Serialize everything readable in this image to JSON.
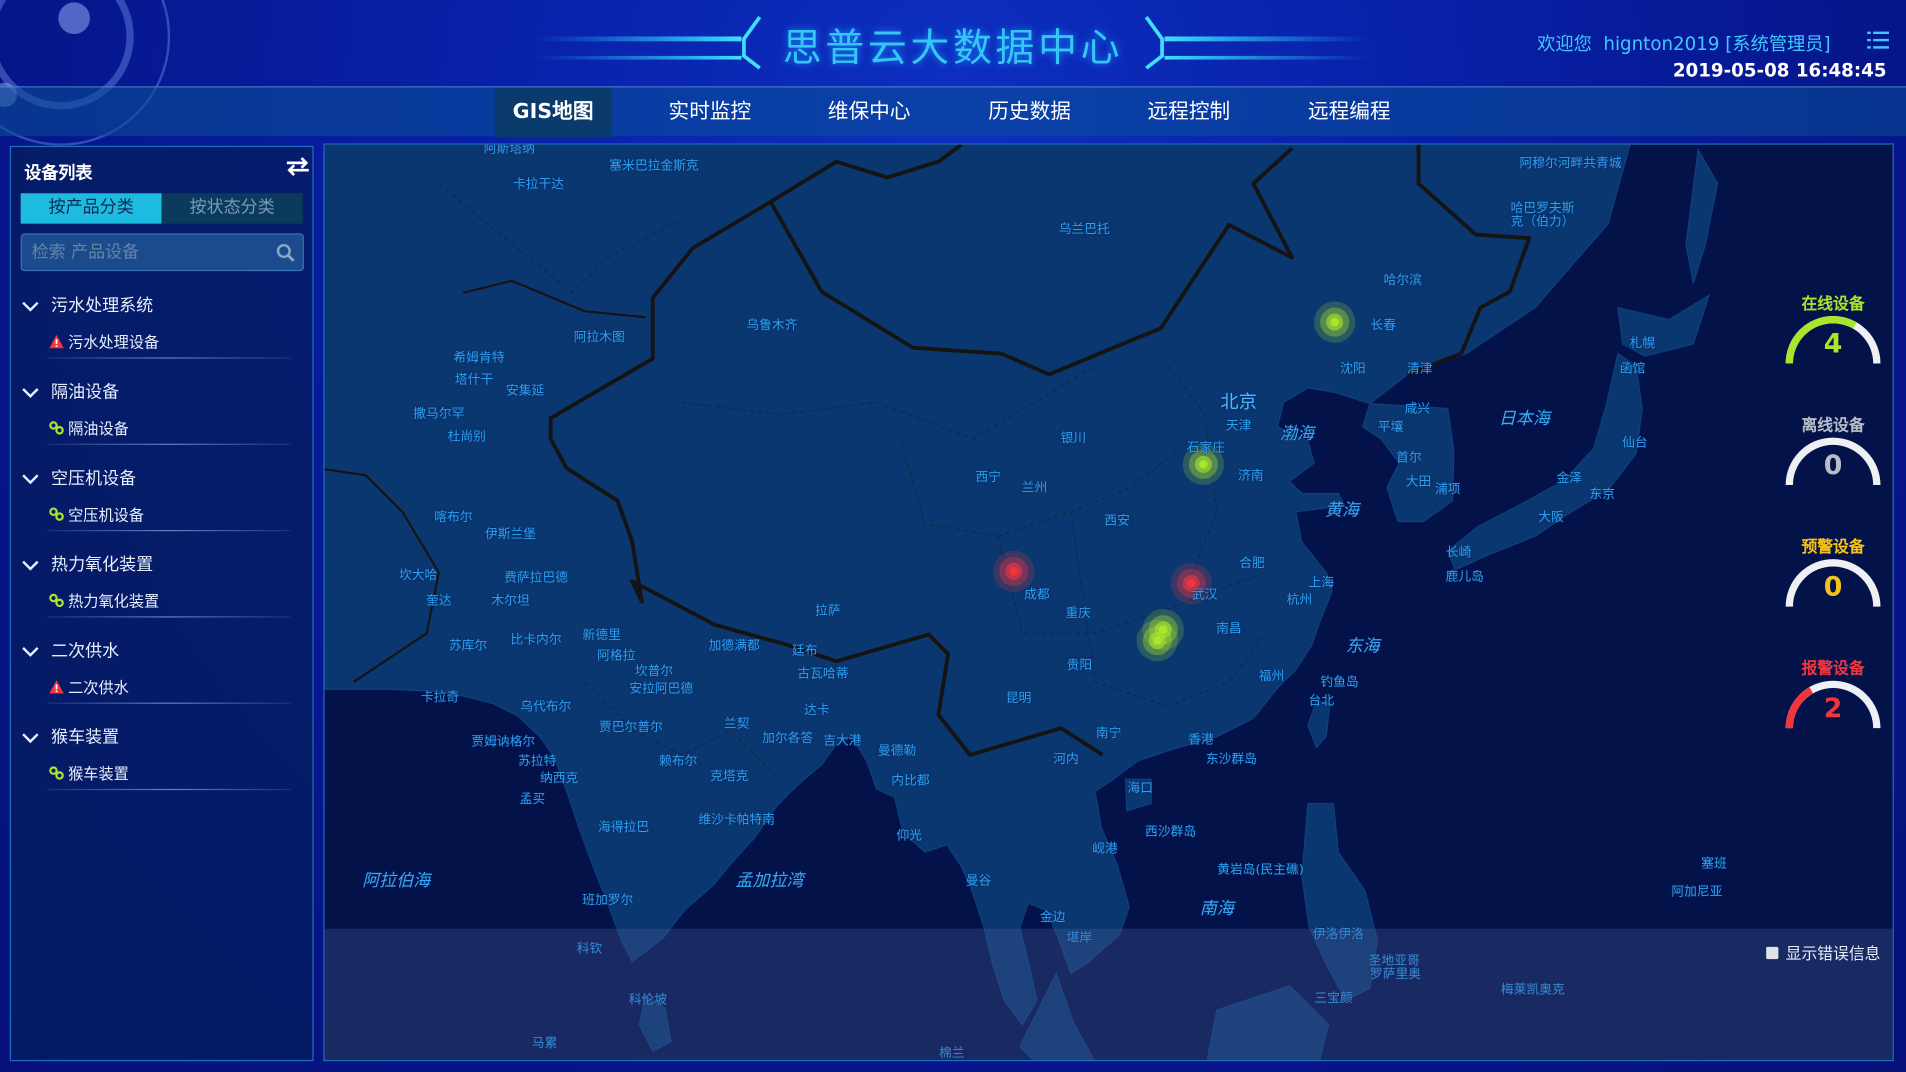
{
  "header": {
    "title": "思普云大数据中心",
    "welcome": "欢迎您  hignton2019 [系统管理员]",
    "datetime": "2019-05-08 16:48:45",
    "menu_icon": "list-menu-icon"
  },
  "nav": {
    "tabs": [
      {
        "label": "GIS地图",
        "active": true
      },
      {
        "label": "实时监控",
        "active": false
      },
      {
        "label": "维保中心",
        "active": false
      },
      {
        "label": "历史数据",
        "active": false
      },
      {
        "label": "远程控制",
        "active": false
      },
      {
        "label": "远程编程",
        "active": false
      }
    ]
  },
  "sidebar": {
    "title": "设备列表",
    "tabs": [
      {
        "label": "按产品分类",
        "active": true
      },
      {
        "label": "按状态分类",
        "active": false
      }
    ],
    "search_placeholder": "检索 产品设备",
    "groups": [
      {
        "name": "污水处理系统",
        "children": [
          {
            "name": "污水处理设备",
            "status": "alarm"
          }
        ]
      },
      {
        "name": "隔油设备",
        "children": [
          {
            "name": "隔油设备",
            "status": "online"
          }
        ]
      },
      {
        "name": "空压机设备",
        "children": [
          {
            "name": "空压机设备",
            "status": "online"
          }
        ]
      },
      {
        "name": "热力氧化装置",
        "children": [
          {
            "name": "热力氧化装置",
            "status": "online"
          }
        ]
      },
      {
        "name": "二次供水",
        "children": [
          {
            "name": "二次供水",
            "status": "alarm"
          }
        ]
      },
      {
        "name": "猴车装置",
        "children": [
          {
            "name": "猴车装置",
            "status": "online"
          }
        ]
      }
    ]
  },
  "colors": {
    "online": "#a8e62c",
    "offline": "#b9bdc8",
    "warning": "#f5c21a",
    "alarm": "#f0353d",
    "accent": "#1ebbe0"
  },
  "gauges": [
    {
      "label": "在线设备",
      "value": 4,
      "total": 6,
      "color": "#a8e62c"
    },
    {
      "label": "离线设备",
      "value": 0,
      "total": 6,
      "color": "#b9bdc8"
    },
    {
      "label": "预警设备",
      "value": 0,
      "total": 6,
      "color": "#f5c21a"
    },
    {
      "label": "报警设备",
      "value": 2,
      "total": 6,
      "color": "#f0353d"
    }
  ],
  "map": {
    "show_error_label": "显示错误信息",
    "show_error_checked": false,
    "markers": [
      {
        "status": "online"
      },
      {
        "status": "online"
      },
      {
        "status": "online"
      },
      {
        "status": "online"
      },
      {
        "status": "alarm"
      },
      {
        "status": "alarm"
      }
    ],
    "labels": [
      "阿斯塔纳",
      "塞米巴拉金斯克",
      "卡拉干达",
      "乌兰巴托",
      "阿穆尔河畔共青城",
      "哈巴罗夫斯",
      "克（伯力）",
      "哈尔滨",
      "长春",
      "沈阳",
      "清津",
      "札幌",
      "函馆",
      "乌鲁木齐",
      "阿拉木图",
      "希姆肯特",
      "塔什干",
      "安集延",
      "撒马尔罕",
      "杜尚别",
      "北京",
      "天津",
      "咸兴",
      "渤海",
      "日本海",
      "平壤",
      "银川",
      "石家庄",
      "首尔",
      "仙台",
      "济南",
      "西宁",
      "兰州",
      "大田",
      "浦项",
      "金泽",
      "东京",
      "大阪",
      "黄海",
      "西安",
      "喀布尔",
      "伊斯兰堡",
      "长崎",
      "鹿儿岛",
      "合肥",
      "坎大哈",
      "费萨拉巴德",
      "成都",
      "武汉",
      "上海",
      "杭州",
      "奎达",
      "木尔坦",
      "拉萨",
      "重庆",
      "南昌",
      "东海",
      "苏库尔",
      "比卡内尔",
      "新德里",
      "阿格拉",
      "加德满都",
      "廷布",
      "贵阳",
      "福州",
      "坎普尔",
      "古瓦哈蒂",
      "钓鱼岛",
      "卡拉奇",
      "安拉阿巴德",
      "台北",
      "昆明",
      "乌代布尔",
      "达卡",
      "兰契",
      "贾巴尔普尔",
      "加尔各答",
      "吉大港",
      "南宁",
      "香港",
      "贾姆讷格尔",
      "曼德勒",
      "河内",
      "东沙群岛",
      "苏拉特",
      "纳西克",
      "赖布尔",
      "克塔克",
      "内比都",
      "海口",
      "孟买",
      "维沙卡帕特南",
      "海得拉巴",
      "西沙群岛",
      "仰光",
      "岘港",
      "黄岩岛(民主礁)",
      "塞班",
      "阿拉伯海",
      "孟加拉湾",
      "曼谷",
      "阿加尼亚",
      "南海",
      "班加罗尔",
      "金边",
      "堪岸",
      "伊洛伊洛",
      "科钦",
      "圣地亚哥",
      "罗萨里奥",
      "科伦坡",
      "三宝颜",
      "梅莱凯奥克",
      "马累",
      "棉兰"
    ]
  }
}
